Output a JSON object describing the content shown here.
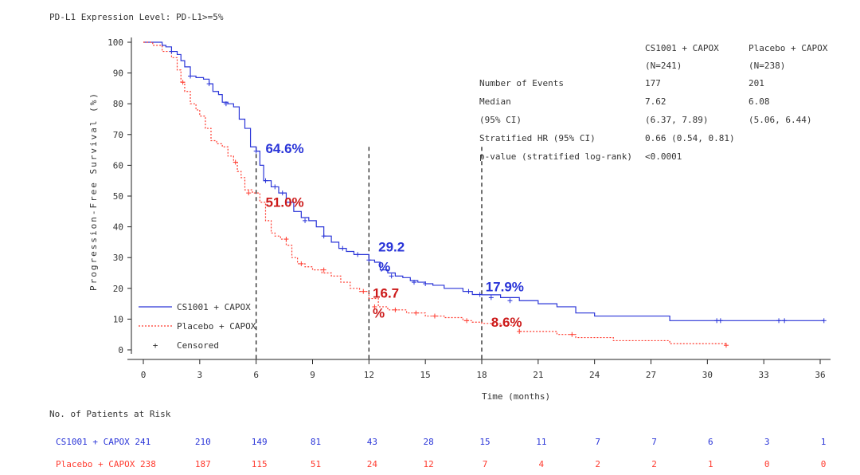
{
  "chart_data": {
    "type": "line",
    "subtitle": "PD-L1 Expression Level: PD-L1>=5%",
    "xlabel": "Time (months)",
    "ylabel": "Progression-Free Survival (%)",
    "xlim": [
      0,
      36
    ],
    "ylim": [
      0,
      100
    ],
    "xticks": [
      "0",
      "3",
      "6",
      "9",
      "12",
      "15",
      "18",
      "21",
      "24",
      "27",
      "30",
      "33",
      "36"
    ],
    "yticks": [
      "0",
      "10",
      "20",
      "30",
      "40",
      "50",
      "60",
      "70",
      "80",
      "90",
      "100"
    ],
    "grid": false,
    "legend_position": "bottom-left",
    "legend": {
      "series1": "CS1001 + CAPOX",
      "series2": "Placebo + CAPOX",
      "censored": "Censored"
    },
    "series": [
      {
        "name": "CS1001 + CAPOX",
        "color": "#2a35d8",
        "x": [
          0,
          0.8,
          1.0,
          1.2,
          1.5,
          1.8,
          2.0,
          2.2,
          2.5,
          2.8,
          3.2,
          3.5,
          3.7,
          4.0,
          4.2,
          4.5,
          4.8,
          5.1,
          5.4,
          5.7,
          6.0,
          6.2,
          6.4,
          6.8,
          7.2,
          7.6,
          8.0,
          8.4,
          8.8,
          9.2,
          9.6,
          10.0,
          10.4,
          10.8,
          11.2,
          11.6,
          12.0,
          12.3,
          12.6,
          13.0,
          13.4,
          13.8,
          14.2,
          14.6,
          15.0,
          15.4,
          16.0,
          17.0,
          17.5,
          18.0,
          19.0,
          20.0,
          21.0,
          22.0,
          23.0,
          24.0,
          26.0,
          28.0,
          30.0,
          36.2
        ],
        "y": [
          100,
          100,
          99,
          98.5,
          97,
          96,
          94,
          92,
          89,
          88.5,
          88,
          86.5,
          84,
          83,
          80.5,
          80,
          79,
          75,
          72,
          66,
          64.6,
          60,
          55,
          53,
          51,
          48,
          45,
          43,
          42,
          40,
          37,
          35,
          33,
          32,
          31,
          31,
          29.2,
          28.5,
          26,
          25,
          24,
          23.5,
          22.5,
          22,
          21.5,
          21,
          20,
          19,
          18,
          17.9,
          17,
          16,
          15,
          14,
          12,
          11,
          11,
          9.5,
          9.5,
          9.5
        ]
      },
      {
        "name": "Placebo + CAPOX",
        "color": "#ff3b2f",
        "x": [
          0,
          0.5,
          1.0,
          1.5,
          1.8,
          2.0,
          2.2,
          2.5,
          2.8,
          3.0,
          3.3,
          3.6,
          3.9,
          4.2,
          4.5,
          4.8,
          5.0,
          5.2,
          5.4,
          5.8,
          6.0,
          6.2,
          6.5,
          6.8,
          7.0,
          7.3,
          7.6,
          7.9,
          8.2,
          8.6,
          9.0,
          9.5,
          10.0,
          10.5,
          11.0,
          11.5,
          12.0,
          12.5,
          13.0,
          14.0,
          15.0,
          16.0,
          17.0,
          17.5,
          18.0,
          19.0,
          20.0,
          22.0,
          23.0,
          25.0,
          28.0,
          31.0
        ],
        "y": [
          100,
          99,
          97,
          95,
          91,
          87,
          84,
          80,
          78,
          76,
          72,
          68,
          67,
          66,
          63,
          61,
          58,
          56,
          52,
          51,
          51,
          48,
          42,
          38,
          37,
          36,
          34,
          30,
          28,
          27,
          26,
          25,
          24,
          22,
          20,
          19,
          16.7,
          14,
          13,
          12,
          11,
          10.5,
          9.5,
          9,
          8.6,
          8,
          6,
          5,
          4,
          3,
          2,
          1.5
        ]
      }
    ],
    "censor_marks": {
      "series1": [
        [
          1.5,
          97
        ],
        [
          2.5,
          89
        ],
        [
          3.5,
          86.5
        ],
        [
          4.4,
          80
        ],
        [
          6.0,
          64.6
        ],
        [
          6.5,
          55
        ],
        [
          7.0,
          53
        ],
        [
          7.4,
          51
        ],
        [
          8.6,
          42
        ],
        [
          9.6,
          37
        ],
        [
          10.6,
          33
        ],
        [
          11.4,
          31
        ],
        [
          12.0,
          29.2
        ],
        [
          13.2,
          24
        ],
        [
          14.4,
          22
        ],
        [
          15.0,
          21.5
        ],
        [
          17.3,
          19
        ],
        [
          17.9,
          18
        ],
        [
          18.5,
          17
        ],
        [
          19.5,
          16
        ],
        [
          30.5,
          9.5
        ],
        [
          30.7,
          9.5
        ],
        [
          33.8,
          9.5
        ],
        [
          34.1,
          9.5
        ],
        [
          36.2,
          9.5
        ]
      ],
      "series2": [
        [
          2.1,
          87
        ],
        [
          4.9,
          61
        ],
        [
          5.6,
          51
        ],
        [
          7.6,
          36
        ],
        [
          8.4,
          28
        ],
        [
          9.6,
          26
        ],
        [
          11.7,
          19
        ],
        [
          12.3,
          14
        ],
        [
          13.4,
          13
        ],
        [
          14.5,
          12
        ],
        [
          15.5,
          11
        ],
        [
          17.2,
          9.5
        ],
        [
          20.0,
          6
        ],
        [
          22.8,
          5
        ],
        [
          31.0,
          1.5
        ]
      ]
    },
    "dashed_lines": {
      "x": [
        6,
        12,
        18
      ]
    },
    "callouts": [
      {
        "text": "64.6%",
        "color": "#2a35d8",
        "x": 6.5,
        "y": 64
      },
      {
        "text": "51.0%",
        "color": "#cc1a1a",
        "x": 6.5,
        "y": 46.5
      },
      {
        "text": "29.2",
        "color": "#2a35d8",
        "x": 12.5,
        "y": 32
      },
      {
        "text": "%",
        "color": "#2a35d8",
        "x": 12.5,
        "y": 25.5
      },
      {
        "text": "16.7",
        "color": "#cc1a1a",
        "x": 12.2,
        "y": 17
      },
      {
        "text": "%",
        "color": "#cc1a1a",
        "x": 12.2,
        "y": 10.5
      },
      {
        "text": "17.9%",
        "color": "#2a35d8",
        "x": 18.2,
        "y": 19
      },
      {
        "text": "8.6%",
        "color": "#cc1a1a",
        "x": 18.5,
        "y": 7.5
      }
    ],
    "stats_table": {
      "col1_header": "CS1001 + CAPOX",
      "col1_n": "(N=241)",
      "col2_header": "Placebo + CAPOX",
      "col2_n": "(N=238)",
      "rows": [
        {
          "label": "Number of Events",
          "v1": "177",
          "v2": "201"
        },
        {
          "label": "Median",
          "v1": "7.62",
          "v2": "6.08"
        },
        {
          "label": "(95% CI)",
          "v1": "(6.37, 7.89)",
          "v2": "(5.06, 6.44)"
        },
        {
          "label": "Stratified HR (95% CI)",
          "v1": "0.66 (0.54, 0.81)",
          "v2": ""
        },
        {
          "label": "p-value (stratified log-rank)",
          "v1": "<0.0001",
          "v2": ""
        }
      ]
    },
    "risk_table": {
      "title": "No. of Patients at Risk",
      "rows": [
        {
          "label": "CS1001 + CAPOX 241",
          "color": "#2a35d8",
          "values": [
            "210",
            "149",
            "81",
            "43",
            "28",
            "15",
            "11",
            "7",
            "7",
            "6",
            "3",
            "1"
          ]
        },
        {
          "label": "Placebo + CAPOX 238",
          "color": "#ff3b2f",
          "values": [
            "187",
            "115",
            "51",
            "24",
            "12",
            "7",
            "4",
            "2",
            "2",
            "1",
            "0",
            "0"
          ]
        }
      ]
    }
  }
}
